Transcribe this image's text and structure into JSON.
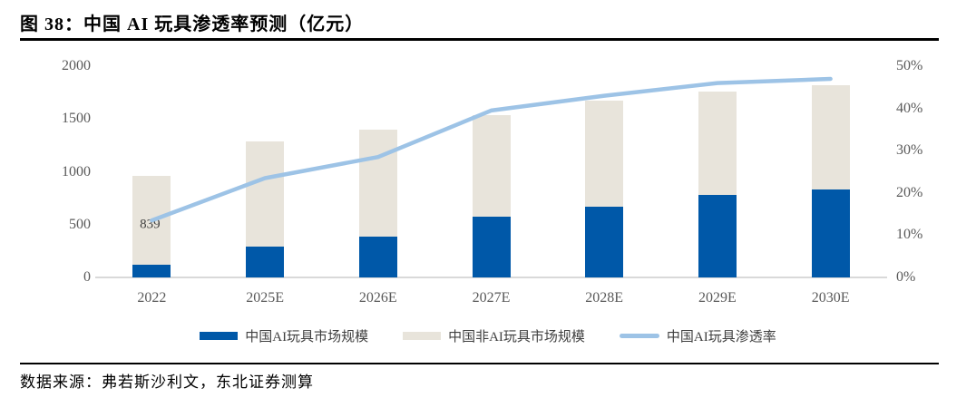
{
  "figure": {
    "title": "图 38：中国 AI 玩具渗透率预测（亿元）",
    "source": "数据来源：弗若斯沙利文，东北证券测算"
  },
  "colors": {
    "ai_bar": "#0058A8",
    "non_ai_bar": "#E8E4DB",
    "penetration_line": "#9DC3E6",
    "axis_text": "#595959",
    "axis_line": "#D9D9D9"
  },
  "chart_data": {
    "type": "bar",
    "subtype": "stacked-column-with-line",
    "title": "图 38：中国 AI 玩具渗透率预测（亿元）",
    "categories": [
      "2022",
      "2025E",
      "2026E",
      "2027E",
      "2028E",
      "2029E",
      "2030E"
    ],
    "series": [
      {
        "name": "中国AI玩具市场规模",
        "type": "bar",
        "stack": "total",
        "axis": "left",
        "values": [
          120,
          290,
          390,
          575,
          670,
          785,
          835
        ]
      },
      {
        "name": "中国非AI玩具市场规模",
        "type": "bar",
        "stack": "total",
        "axis": "left",
        "values": [
          839,
          995,
          1010,
          965,
          1000,
          975,
          985
        ]
      },
      {
        "name": "中国AI玩具渗透率",
        "type": "line",
        "axis": "right",
        "values_percent": [
          13.5,
          23.5,
          28.5,
          39.5,
          43,
          46,
          47
        ]
      }
    ],
    "left_axis": {
      "min": 0,
      "max": 2000,
      "ticks": [
        "0",
        "500",
        "1000",
        "1500",
        "2000"
      ]
    },
    "right_axis": {
      "min": 0,
      "max": 50,
      "ticks": [
        "0%",
        "10%",
        "20%",
        "30%",
        "40%",
        "50%"
      ]
    },
    "data_labels": [
      {
        "category": "2022",
        "series": "中国非AI玩具市场规模",
        "text": "839"
      }
    ],
    "legend_position": "bottom",
    "grid": false
  }
}
